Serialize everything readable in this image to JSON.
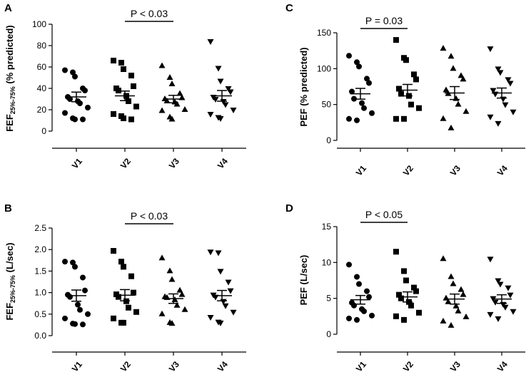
{
  "chart_data": [
    {
      "type": "scatter",
      "panel": "A",
      "ylabel": {
        "main": "FEF",
        "sub": "25%-75%",
        "rest": " (% predicted)"
      },
      "categories": [
        "V1",
        "V2",
        "V3",
        "V4"
      ],
      "markers": [
        "circle",
        "square",
        "triangle-up",
        "triangle-down"
      ],
      "ylim": [
        0,
        100
      ],
      "yticks": [
        0,
        20,
        40,
        60,
        80,
        100
      ],
      "tick_labels": [
        "0",
        "20",
        "40",
        "60",
        "80",
        "100"
      ],
      "significance": {
        "label": "P < 0.03",
        "from": "V2",
        "to": "V3"
      },
      "series": [
        {
          "name": "V1",
          "mean": 32,
          "sem": 4.5,
          "values": [
            57,
            55,
            51,
            40,
            38,
            32,
            30,
            28,
            26,
            22,
            17,
            12,
            11,
            11
          ]
        },
        {
          "name": "V2",
          "mean": 33,
          "sem": 4.5,
          "values": [
            66,
            64,
            58,
            52,
            42,
            40,
            38,
            33,
            28,
            23,
            16,
            14,
            12,
            11
          ]
        },
        {
          "name": "V3",
          "mean": 30,
          "sem": 3.5,
          "values": [
            61,
            50,
            44,
            35,
            31,
            30,
            28,
            27,
            25,
            20,
            19,
            13,
            11
          ]
        },
        {
          "name": "V4",
          "mean": 33,
          "sem": 5,
          "values": [
            84,
            59,
            47,
            40,
            37,
            32,
            30,
            28,
            25,
            20,
            16,
            13,
            12
          ]
        }
      ]
    },
    {
      "type": "scatter",
      "panel": "B",
      "ylabel": {
        "main": "FEF",
        "sub": "25%-75%",
        "rest": " (L/sec)"
      },
      "categories": [
        "V1",
        "V2",
        "V3",
        "V4"
      ],
      "markers": [
        "circle",
        "square",
        "triangle-up",
        "triangle-down"
      ],
      "ylim": [
        0,
        2.5
      ],
      "yticks": [
        0,
        0.5,
        1,
        1.5,
        2,
        2.5
      ],
      "tick_labels": [
        "0.0",
        "0.5",
        "1.0",
        "1.5",
        "2.0",
        "2.5"
      ],
      "significance": {
        "label": "P < 0.03",
        "from": "V2",
        "to": "V3"
      },
      "series": [
        {
          "name": "V1",
          "mean": 0.93,
          "sem": 0.13,
          "values": [
            1.72,
            1.7,
            1.6,
            1.35,
            1.05,
            0.95,
            0.9,
            0.72,
            0.6,
            0.5,
            0.4,
            0.28,
            0.27,
            0.26
          ]
        },
        {
          "name": "V2",
          "mean": 0.94,
          "sem": 0.13,
          "values": [
            1.97,
            1.72,
            1.6,
            1.38,
            1.0,
            0.96,
            0.9,
            0.8,
            0.65,
            0.55,
            0.4,
            0.3,
            0.3
          ]
        },
        {
          "name": "V3",
          "mean": 0.86,
          "sem": 0.11,
          "values": [
            1.8,
            1.5,
            1.3,
            1.05,
            0.95,
            0.9,
            0.88,
            0.83,
            0.7,
            0.6,
            0.5,
            0.3,
            0.28
          ]
        },
        {
          "name": "V4",
          "mean": 0.93,
          "sem": 0.12,
          "values": [
            1.95,
            1.93,
            1.5,
            1.25,
            1.05,
            0.95,
            0.9,
            0.8,
            0.7,
            0.55,
            0.43,
            0.32,
            0.3
          ]
        }
      ]
    },
    {
      "type": "scatter",
      "panel": "C",
      "ylabel": {
        "main": "PEF (% predicted)",
        "sub": "",
        "rest": ""
      },
      "categories": [
        "V1",
        "V2",
        "V3",
        "V4"
      ],
      "markers": [
        "circle",
        "square",
        "triangle-up",
        "triangle-down"
      ],
      "ylim": [
        0,
        150
      ],
      "yticks": [
        0,
        50,
        100,
        150
      ],
      "tick_labels": [
        "0",
        "50",
        "100",
        "150"
      ],
      "significance": {
        "label": "P = 0.03",
        "from": "V1",
        "to": "V2"
      },
      "series": [
        {
          "name": "V1",
          "mean": 65,
          "sem": 7.5,
          "values": [
            118,
            109,
            103,
            86,
            80,
            68,
            58,
            52,
            45,
            38,
            30,
            28
          ]
        },
        {
          "name": "V2",
          "mean": 70,
          "sem": 8,
          "values": [
            140,
            115,
            112,
            92,
            85,
            72,
            65,
            62,
            50,
            45,
            30,
            30
          ]
        },
        {
          "name": "V3",
          "mean": 66,
          "sem": 9,
          "values": [
            128,
            117,
            100,
            90,
            85,
            70,
            65,
            58,
            50,
            40,
            30,
            17
          ]
        },
        {
          "name": "V4",
          "mean": 66,
          "sem": 7,
          "values": [
            128,
            100,
            95,
            85,
            80,
            70,
            65,
            58,
            50,
            40,
            33,
            24
          ]
        }
      ]
    },
    {
      "type": "scatter",
      "panel": "D",
      "ylabel": {
        "main": "PEF (L/sec)",
        "sub": "",
        "rest": ""
      },
      "categories": [
        "V1",
        "V2",
        "V3",
        "V4"
      ],
      "markers": [
        "circle",
        "square",
        "triangle-up",
        "triangle-down"
      ],
      "ylim": [
        0,
        15
      ],
      "yticks": [
        0,
        5,
        10,
        15
      ],
      "tick_labels": [
        "0",
        "5",
        "10",
        "15"
      ],
      "significance": {
        "label": "P < 0.05",
        "from": "V1",
        "to": "V2"
      },
      "series": [
        {
          "name": "V1",
          "mean": 4.8,
          "sem": 0.6,
          "values": [
            9.7,
            8.0,
            7.0,
            6.0,
            5.2,
            4.4,
            4.0,
            3.5,
            3.2,
            2.6,
            2.2,
            2.0
          ]
        },
        {
          "name": "V2",
          "mean": 5.2,
          "sem": 0.7,
          "values": [
            11.5,
            8.8,
            7.5,
            6.5,
            6.0,
            5.5,
            5.0,
            4.5,
            4.0,
            3.0,
            2.5,
            2.0
          ]
        },
        {
          "name": "V3",
          "mean": 4.9,
          "sem": 0.7,
          "values": [
            10.5,
            8.0,
            7.0,
            6.2,
            5.5,
            5.0,
            4.5,
            3.9,
            3.2,
            2.4,
            1.8,
            1.2
          ]
        },
        {
          "name": "V4",
          "mean": 4.9,
          "sem": 0.6,
          "values": [
            10.5,
            7.5,
            7.0,
            6.5,
            5.5,
            5.0,
            4.5,
            4.2,
            3.8,
            3.2,
            2.8,
            2.2
          ]
        }
      ]
    }
  ]
}
